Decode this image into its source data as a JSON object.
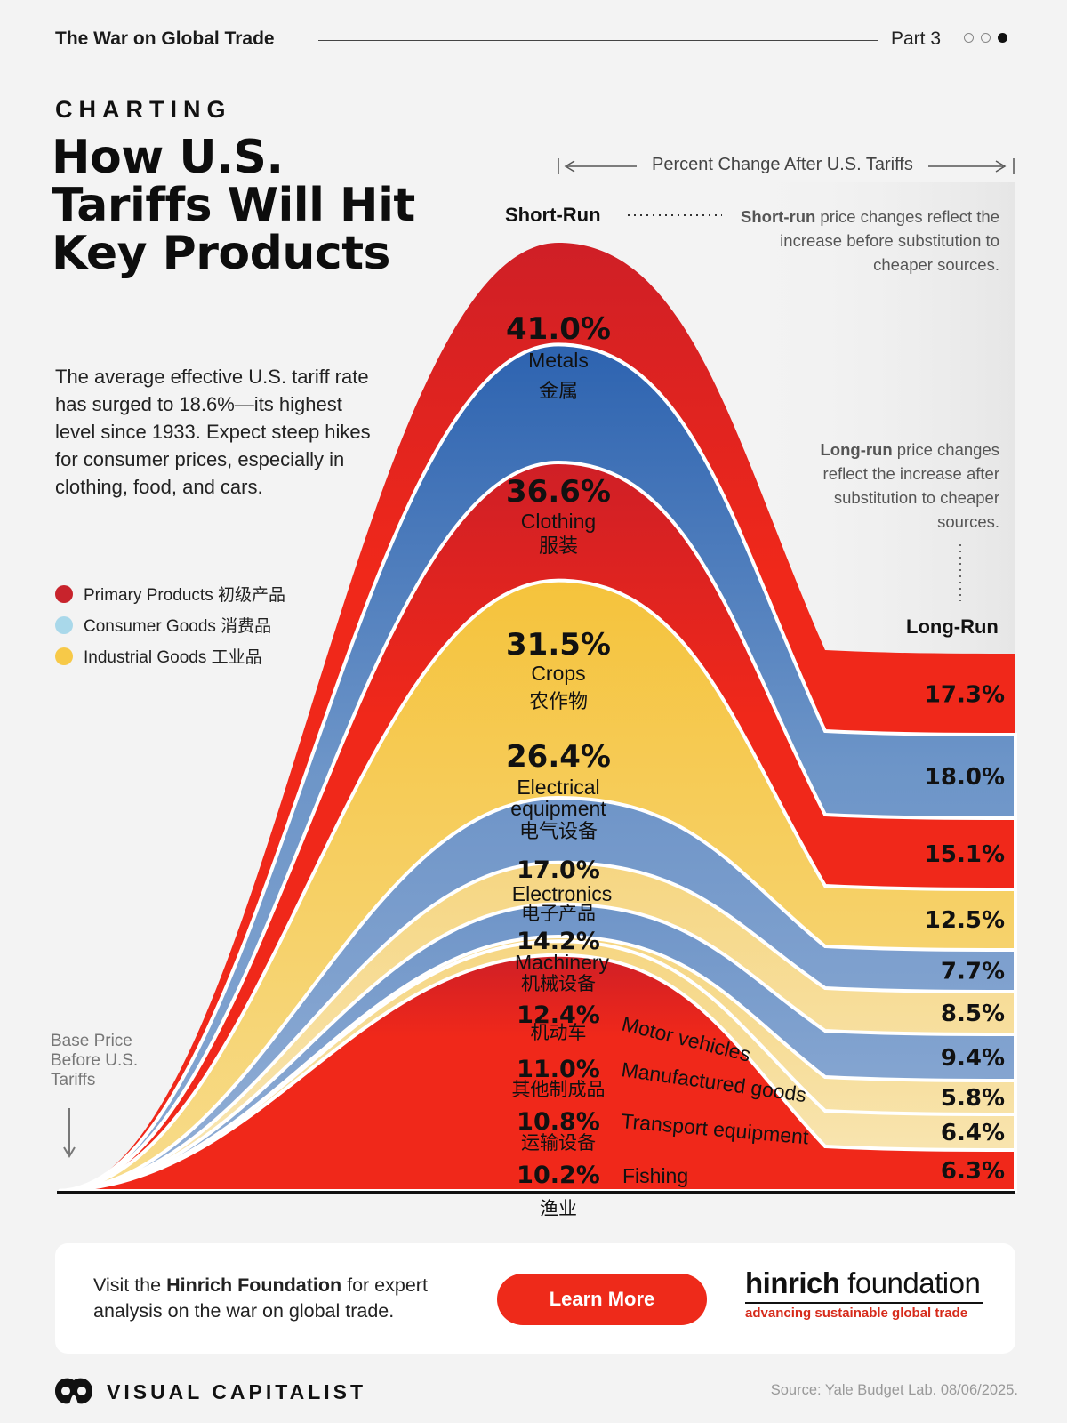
{
  "header": {
    "series_title": "The War on Global Trade",
    "part_label": "Part 3",
    "part_dots": [
      false,
      false,
      true
    ]
  },
  "kicker": "CHARTING",
  "headline": "How U.S. Tariffs Will Hit Key Products",
  "intro": "The average effective U.S. tariff rate has surged to 18.6%—its highest level since 1933. Expect steep hikes for consumer prices, especially in clothing, food, and cars.",
  "legend": [
    {
      "label": "Primary Products 初级产品",
      "color": "#c8232c"
    },
    {
      "label": "Consumer Goods 消费品",
      "color": "#a9d8ea"
    },
    {
      "label": "Industrial Goods 工业品",
      "color": "#f7c948"
    }
  ],
  "annotations": {
    "column_header": "Percent Change After U.S. Tariffs",
    "short_run_label": "Short-Run",
    "long_run_label": "Long-Run",
    "short_run_note_bold": "Short-run",
    "short_run_note_rest": " price changes reflect the increase before substitution to cheaper sources.",
    "long_run_note_bold": "Long-run",
    "long_run_note_rest": " price changes reflect the increase after substitution to cheaper sources.",
    "base_label": "Base Price Before U.S. Tariffs"
  },
  "colors": {
    "primary_red": "#f0281a",
    "primary_red_top": "#d21f24",
    "consumer_blue": "#7ea0cc",
    "consumer_blue_top": "#2f66b2",
    "industrial_yellow": "#f6d06c",
    "industrial_yellow_light": "#f6e3b0",
    "baseline": "#111111"
  },
  "chart_data": {
    "type": "area",
    "title": "How U.S. Tariffs Will Hit Key Products",
    "xlabel": "",
    "ylabel": "Percent Change After U.S. Tariffs",
    "categories": [
      "Short-Run",
      "Long-Run"
    ],
    "series": [
      {
        "name": "Metals",
        "name_zh": "金属",
        "group": "Primary Products",
        "short_run": "41.0%",
        "long_run": "17.3%",
        "short_value": 41.0,
        "long_value": 17.3
      },
      {
        "name": "Clothing",
        "name_zh": "服装",
        "group": "Consumer Goods",
        "short_run": "36.6%",
        "long_run": "18.0%",
        "short_value": 36.6,
        "long_value": 18.0
      },
      {
        "name": "Crops",
        "name_zh": "农作物",
        "group": "Primary Products",
        "short_run": "31.5%",
        "long_run": "15.1%",
        "short_value": 31.5,
        "long_value": 15.1
      },
      {
        "name": "Electrical equipment",
        "name_zh": "电气设备",
        "group": "Industrial Goods",
        "short_run": "26.4%",
        "long_run": "12.5%",
        "short_value": 26.4,
        "long_value": 12.5
      },
      {
        "name": "Electronics",
        "name_zh": "电子产品",
        "group": "Consumer Goods",
        "short_run": "17.0%",
        "long_run": "7.7%",
        "short_value": 17.0,
        "long_value": 7.7
      },
      {
        "name": "Machinery",
        "name_zh": "机械设备",
        "group": "Industrial Goods",
        "short_run": "14.2%",
        "long_run": "8.5%",
        "short_value": 14.2,
        "long_value": 8.5
      },
      {
        "name": "Motor vehicles",
        "name_zh": "机动车",
        "group": "Consumer Goods",
        "short_run": "12.4%",
        "long_run": "9.4%",
        "short_value": 12.4,
        "long_value": 9.4
      },
      {
        "name": "Manufactured goods",
        "name_zh": "其他制成品",
        "group": "Industrial Goods",
        "short_run": "11.0%",
        "long_run": "5.8%",
        "short_value": 11.0,
        "long_value": 5.8
      },
      {
        "name": "Transport equipment",
        "name_zh": "运输设备",
        "group": "Industrial Goods",
        "short_run": "10.8%",
        "long_run": "6.4%",
        "short_value": 10.8,
        "long_value": 6.4
      },
      {
        "name": "Fishing",
        "name_zh": "渔业",
        "group": "Primary Products",
        "short_run": "10.2%",
        "long_run": "6.3%",
        "short_value": 10.2,
        "long_value": 6.3
      }
    ]
  },
  "cta": {
    "text_before": "Visit the ",
    "text_bold": "Hinrich Foundation",
    "text_after": " for expert analysis on the war on global trade.",
    "button_label": "Learn More",
    "brand_bold": "hinrich",
    "brand_rest": " foundation",
    "brand_tagline": "advancing sustainable global trade"
  },
  "footer": {
    "brand": "VISUAL CAPITALIST",
    "source": "Source: Yale Budget Lab. 08/06/2025."
  }
}
